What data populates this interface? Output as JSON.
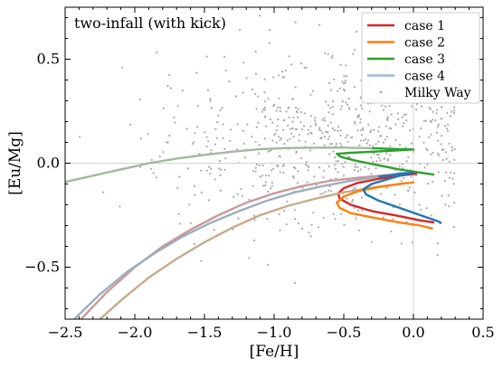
{
  "chart_data": {
    "type": "line",
    "annotation": "two-infall (with kick)",
    "xlabel": "[Fe/H]",
    "ylabel": "[Eu/Mg]",
    "xlim": [
      -2.5,
      0.5
    ],
    "ylim": [
      -0.75,
      0.75
    ],
    "xticks": [
      -2.5,
      -2.0,
      -1.5,
      -1.0,
      -0.5,
      0.0,
      0.5
    ],
    "xtick_labels": [
      "−2.5",
      "−2.0",
      "−1.5",
      "−1.0",
      "−0.5",
      "0.0",
      "0.5"
    ],
    "yticks": [
      -0.5,
      0.0,
      0.5
    ],
    "ytick_labels": [
      "−0.5",
      "0.0",
      "0.5"
    ],
    "reference_lines": {
      "x": 0.0,
      "y": 0.0,
      "color": "#d3d3d3"
    },
    "grid": false,
    "legend_position": "top-right",
    "series": [
      {
        "name": "case 1",
        "color": "#d62728",
        "early_color": "#c89a9a",
        "fade_until_x": -0.55,
        "points": [
          [
            -2.4,
            -0.76
          ],
          [
            -2.2,
            -0.62
          ],
          [
            -2.0,
            -0.5
          ],
          [
            -1.8,
            -0.4
          ],
          [
            -1.6,
            -0.32
          ],
          [
            -1.4,
            -0.25
          ],
          [
            -1.2,
            -0.19
          ],
          [
            -1.0,
            -0.145
          ],
          [
            -0.8,
            -0.11
          ],
          [
            -0.6,
            -0.085
          ],
          [
            -0.4,
            -0.07
          ],
          [
            -0.2,
            -0.058
          ],
          [
            0.0,
            -0.05
          ],
          [
            0.02,
            -0.05
          ],
          [
            -0.1,
            -0.06
          ],
          [
            -0.25,
            -0.075
          ],
          [
            -0.4,
            -0.095
          ],
          [
            -0.5,
            -0.12
          ],
          [
            -0.54,
            -0.145
          ],
          [
            -0.53,
            -0.17
          ],
          [
            -0.45,
            -0.2
          ],
          [
            -0.3,
            -0.23
          ],
          [
            -0.1,
            -0.255
          ],
          [
            0.05,
            -0.275
          ],
          [
            0.15,
            -0.285
          ]
        ]
      },
      {
        "name": "case 2",
        "color": "#ff7f0e",
        "early_color": "#c8aa8c",
        "fade_until_x": -0.55,
        "points": [
          [
            -2.3,
            -0.78
          ],
          [
            -2.1,
            -0.66
          ],
          [
            -1.9,
            -0.55
          ],
          [
            -1.7,
            -0.46
          ],
          [
            -1.5,
            -0.38
          ],
          [
            -1.3,
            -0.31
          ],
          [
            -1.1,
            -0.25
          ],
          [
            -0.9,
            -0.205
          ],
          [
            -0.7,
            -0.17
          ],
          [
            -0.5,
            -0.14
          ],
          [
            -0.3,
            -0.118
          ],
          [
            -0.1,
            -0.1
          ],
          [
            0.0,
            -0.092
          ],
          [
            -0.1,
            -0.1
          ],
          [
            -0.25,
            -0.115
          ],
          [
            -0.4,
            -0.135
          ],
          [
            -0.5,
            -0.16
          ],
          [
            -0.55,
            -0.19
          ],
          [
            -0.53,
            -0.215
          ],
          [
            -0.45,
            -0.24
          ],
          [
            -0.3,
            -0.26
          ],
          [
            -0.1,
            -0.285
          ],
          [
            0.05,
            -0.3
          ],
          [
            0.14,
            -0.315
          ]
        ]
      },
      {
        "name": "case 3",
        "color": "#2ca02c",
        "early_color": "#a3b8a0",
        "fade_until_x": -0.55,
        "points": [
          [
            -2.5,
            -0.09
          ],
          [
            -2.3,
            -0.06
          ],
          [
            -2.1,
            -0.03
          ],
          [
            -1.9,
            0.0
          ],
          [
            -1.7,
            0.022
          ],
          [
            -1.5,
            0.04
          ],
          [
            -1.3,
            0.055
          ],
          [
            -1.1,
            0.068
          ],
          [
            -0.9,
            0.073
          ],
          [
            -0.7,
            0.075
          ],
          [
            -0.5,
            0.075
          ],
          [
            -0.3,
            0.072
          ],
          [
            -0.1,
            0.068
          ],
          [
            0.0,
            0.066
          ],
          [
            -0.15,
            0.06
          ],
          [
            -0.3,
            0.055
          ],
          [
            -0.45,
            0.05
          ],
          [
            -0.55,
            0.045
          ],
          [
            -0.52,
            0.03
          ],
          [
            -0.4,
            0.01
          ],
          [
            -0.25,
            -0.01
          ],
          [
            -0.1,
            -0.03
          ],
          [
            0.05,
            -0.045
          ],
          [
            0.15,
            -0.055
          ]
        ]
      },
      {
        "name": "case 4",
        "color": "#1f77b4",
        "early_color": "#9eaebc",
        "fade_until_x": -0.35,
        "points": [
          [
            -2.45,
            -0.76
          ],
          [
            -2.25,
            -0.63
          ],
          [
            -2.05,
            -0.52
          ],
          [
            -1.85,
            -0.43
          ],
          [
            -1.65,
            -0.35
          ],
          [
            -1.45,
            -0.285
          ],
          [
            -1.25,
            -0.23
          ],
          [
            -1.05,
            -0.18
          ],
          [
            -0.85,
            -0.14
          ],
          [
            -0.65,
            -0.11
          ],
          [
            -0.45,
            -0.085
          ],
          [
            -0.25,
            -0.065
          ],
          [
            -0.1,
            -0.05
          ],
          [
            0.0,
            -0.045
          ],
          [
            -0.1,
            -0.06
          ],
          [
            -0.2,
            -0.08
          ],
          [
            -0.3,
            -0.1
          ],
          [
            -0.36,
            -0.125
          ],
          [
            -0.34,
            -0.15
          ],
          [
            -0.25,
            -0.18
          ],
          [
            -0.1,
            -0.215
          ],
          [
            0.05,
            -0.25
          ],
          [
            0.18,
            -0.28
          ],
          [
            0.2,
            -0.29
          ]
        ]
      }
    ],
    "scatter": {
      "name": "Milky Way",
      "color": "#a9a9a9",
      "count": 700,
      "x_mean": -0.6,
      "x_sd": 0.6,
      "y_mean": 0.12,
      "y_sd": 0.22,
      "seed": 17
    },
    "legend": [
      {
        "label": "case 1",
        "color": "#d62728",
        "kind": "line"
      },
      {
        "label": "case 2",
        "color": "#ff7f0e",
        "kind": "line"
      },
      {
        "label": "case 3",
        "color": "#2ca02c",
        "kind": "line"
      },
      {
        "label": "case 4",
        "color": "#9cbcd0",
        "kind": "line"
      },
      {
        "label": "Milky Way",
        "color": "#a9a9a9",
        "kind": "dot"
      }
    ]
  }
}
